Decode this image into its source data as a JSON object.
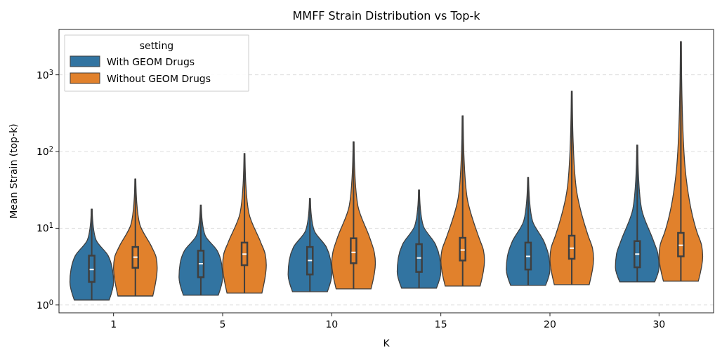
{
  "chart_data": {
    "type": "box",
    "title": "MMFF Strain Distribution vs Top-k",
    "xlabel": "K",
    "ylabel": "Mean Strain (top-k)",
    "legend_title": "setting",
    "legend": "top left",
    "log": "y",
    "grid": "y",
    "categories": [
      "1",
      "5",
      "10",
      "15",
      "20",
      "30"
    ],
    "ylim": [
      0.79,
      3900
    ],
    "yticks": [
      {
        "value": 1,
        "label": "10$^{0}$"
      },
      {
        "value": 10,
        "label": "10$^{1}$"
      },
      {
        "value": 100,
        "label": "10$^{2}$"
      },
      {
        "value": 1000,
        "label": "10$^{3}$"
      }
    ],
    "series": [
      {
        "name": "With GEOM Drugs",
        "color": "#3274a1",
        "boxes": [
          {
            "low": 1.16,
            "q1": 2.0,
            "median": 2.9,
            "q3": 4.4,
            "high": 17.8
          },
          {
            "low": 1.34,
            "q1": 2.3,
            "median": 3.45,
            "q3": 5.1,
            "high": 20
          },
          {
            "low": 1.49,
            "q1": 2.5,
            "median": 3.8,
            "q3": 5.7,
            "high": 24.5
          },
          {
            "low": 1.66,
            "q1": 2.7,
            "median": 4.1,
            "q3": 6.2,
            "high": 31.5
          },
          {
            "low": 1.8,
            "q1": 2.9,
            "median": 4.3,
            "q3": 6.5,
            "high": 46
          },
          {
            "low": 2.0,
            "q1": 3.1,
            "median": 4.6,
            "q3": 6.8,
            "high": 121
          }
        ]
      },
      {
        "name": "Without GEOM Drugs",
        "color": "#e1812c",
        "boxes": [
          {
            "low": 1.31,
            "q1": 3.05,
            "median": 4.2,
            "q3": 5.7,
            "high": 44
          },
          {
            "low": 1.43,
            "q1": 3.3,
            "median": 4.6,
            "q3": 6.5,
            "high": 94
          },
          {
            "low": 1.62,
            "q1": 3.5,
            "median": 4.85,
            "q3": 7.4,
            "high": 134
          },
          {
            "low": 1.76,
            "q1": 3.8,
            "median": 5.2,
            "q3": 7.5,
            "high": 292
          },
          {
            "low": 1.84,
            "q1": 4.0,
            "median": 5.5,
            "q3": 8.0,
            "high": 610
          },
          {
            "low": 2.04,
            "q1": 4.3,
            "median": 6.0,
            "q3": 8.7,
            "high": 2700
          }
        ]
      }
    ]
  }
}
